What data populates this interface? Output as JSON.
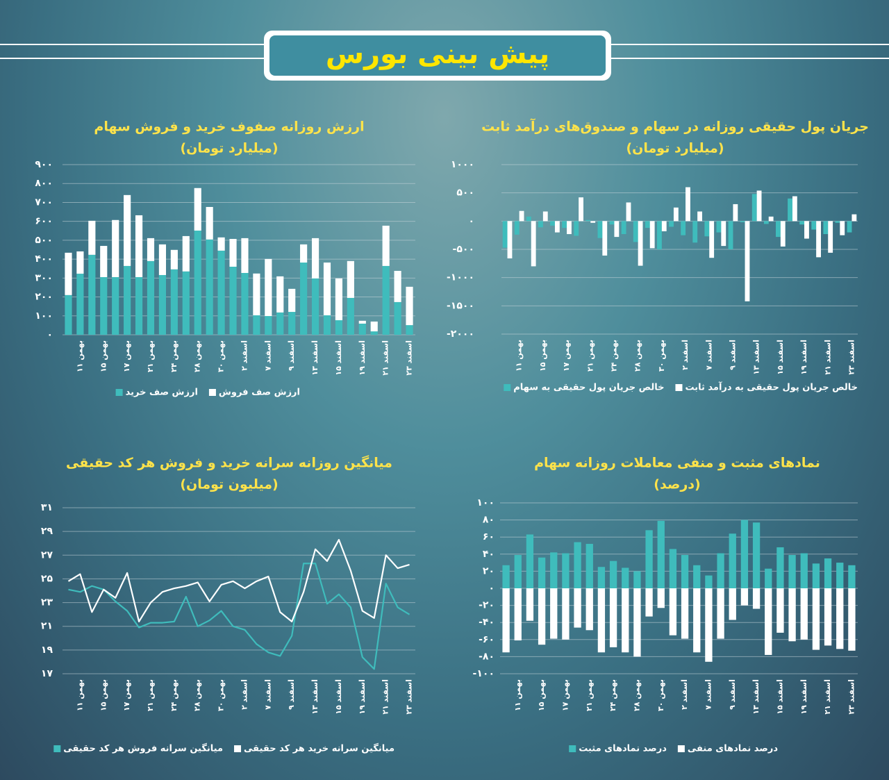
{
  "header": {
    "title": "پیش بینی بورس"
  },
  "chart_data": [
    {
      "type": "bar",
      "stacked": true,
      "title": "ارزش روزانه صفوف خرید و فروش سهام",
      "subtitle": "(میلیارد تومان)",
      "categories": [
        null,
        "۱۱ بهمن",
        null,
        "۱۵ بهمن",
        null,
        "۱۷ بهمن",
        null,
        "۲۱ بهمن",
        null,
        "۲۴ بهمن",
        null,
        "۲۸ بهمن",
        null,
        "۳۰ بهمن",
        null,
        "۲ اسفند",
        null,
        "۷ اسفند",
        null,
        "۹ اسفند",
        null,
        "۱۳ اسفند",
        null,
        "۱۵ اسفند",
        null,
        "۱۹ اسفند",
        null,
        "۲۱ اسفند",
        null,
        "۲۳ اسفند"
      ],
      "series": [
        {
          "name": "ارزش صف خرید",
          "color": "#3fbcbc",
          "values": [
            210,
            323,
            423,
            305,
            305,
            364,
            305,
            390,
            316,
            346,
            335,
            551,
            504,
            445,
            360,
            327,
            103,
            99,
            118,
            121,
            382,
            298,
            103,
            77,
            195,
            59,
            18,
            364,
            173,
            51
          ]
        },
        {
          "name": "ارزش صف فروش",
          "color": "#ffffff",
          "values": [
            224,
            118,
            180,
            165,
            302,
            375,
            327,
            121,
            162,
            103,
            187,
            225,
            172,
            70,
            147,
            184,
            221,
            302,
            191,
            122,
            96,
            213,
            279,
            221,
            195,
            15,
            52,
            213,
            165,
            203
          ]
        }
      ],
      "ylim": [
        0,
        900
      ],
      "yticks": [
        {
          "value": 0,
          "label": "۰"
        },
        {
          "value": 100,
          "label": "۱۰۰"
        },
        {
          "value": 200,
          "label": "۲۰۰"
        },
        {
          "value": 300,
          "label": "۳۰۰"
        },
        {
          "value": 400,
          "label": "۴۰۰"
        },
        {
          "value": 500,
          "label": "۵۰۰"
        },
        {
          "value": 600,
          "label": "۶۰۰"
        },
        {
          "value": 700,
          "label": "۷۰۰"
        },
        {
          "value": 800,
          "label": "۸۰۰"
        },
        {
          "value": 900,
          "label": "۹۰۰"
        }
      ],
      "grid": true
    },
    {
      "type": "bar",
      "stacked": false,
      "title": "جریان پول حقیقی روزانه در سهام و صندوق‌های درآمد ثابت",
      "subtitle": "(میلیارد تومان)",
      "categories": [
        null,
        "۱۱ بهمن",
        null,
        "۱۵ بهمن",
        null,
        "۱۷ بهمن",
        null,
        "۲۱ بهمن",
        null,
        "۲۴ بهمن",
        null,
        "۲۸ بهمن",
        null,
        "۳۰ بهمن",
        null,
        "۲ اسفند",
        null,
        "۷ اسفند",
        null,
        "۹ اسفند",
        null,
        "۱۳ اسفند",
        null,
        "۱۵ اسفند",
        null,
        "۱۹ اسفند",
        null,
        "۲۱ اسفند",
        null,
        "۲۳ اسفند"
      ],
      "series": [
        {
          "name": "خالص جریان پول حقیقی به سهام",
          "color": "#3fbcbc",
          "values": [
            -470,
            -240,
            80,
            -110,
            -80,
            -120,
            -260,
            20,
            -300,
            -60,
            -230,
            -370,
            -120,
            -500,
            -100,
            -250,
            -380,
            -270,
            -200,
            -500,
            -20,
            480,
            -50,
            -280,
            400,
            -60,
            -150,
            -230,
            -30,
            -200
          ]
        },
        {
          "name": "خالص جریان پول حقیقی به درآمد ثابت",
          "color": "#ffffff",
          "values": [
            -660,
            180,
            -800,
            170,
            -200,
            -230,
            420,
            -30,
            -610,
            -280,
            330,
            -790,
            -480,
            -180,
            240,
            600,
            170,
            -650,
            -440,
            300,
            -1420,
            540,
            80,
            -450,
            440,
            -310,
            -640,
            -560,
            -250,
            120
          ]
        }
      ],
      "ylim": [
        -2000,
        1000
      ],
      "yticks": [
        {
          "value": -2000,
          "label": "-۲۰۰۰"
        },
        {
          "value": -1500,
          "label": "-۱۵۰۰"
        },
        {
          "value": -1000,
          "label": "-۱۰۰۰"
        },
        {
          "value": -500,
          "label": "-۵۰۰"
        },
        {
          "value": 0,
          "label": "۰"
        },
        {
          "value": 500,
          "label": "۵۰۰"
        },
        {
          "value": 1000,
          "label": "۱۰۰۰"
        }
      ],
      "grid": true
    },
    {
      "type": "line",
      "title": "میانگین روزانه سرانه خرید و فروش هر کد حقیقی",
      "subtitle": "(میلیون تومان)",
      "categories": [
        null,
        "۱۱ بهمن",
        null,
        "۱۵ بهمن",
        null,
        "۱۷ بهمن",
        null,
        "۲۱ بهمن",
        null,
        "۲۴ بهمن",
        null,
        "۲۸ بهمن",
        null,
        "۳۰ بهمن",
        null,
        "۲ اسفند",
        null,
        "۷ اسفند",
        null,
        "۹ اسفند",
        null,
        "۱۳ اسفند",
        null,
        "۱۵ اسفند",
        null,
        "۱۹ اسفند",
        null,
        "۲۱ اسفند",
        null,
        "۲۳ اسفند"
      ],
      "series": [
        {
          "name": "میانگین سرانه فروش هر کد حقیقی",
          "color": "#3fbcbc",
          "values": [
            24.1,
            23.9,
            24.4,
            24.1,
            23.1,
            22.3,
            20.9,
            21.3,
            21.3,
            21.4,
            23.5,
            21.0,
            21.5,
            22.3,
            21.0,
            20.7,
            19.5,
            18.8,
            18.5,
            20.2,
            26.3,
            26.3,
            22.9,
            23.7,
            22.6,
            18.4,
            17.4,
            24.6,
            22.6,
            22.0
          ]
        },
        {
          "name": "میانگین سرانه خرید هر کد حقیقی",
          "color": "#ffffff",
          "values": [
            24.8,
            25.4,
            22.2,
            24.1,
            23.4,
            25.5,
            21.4,
            23.0,
            23.9,
            24.2,
            24.4,
            24.7,
            23.1,
            24.5,
            24.8,
            24.2,
            24.8,
            25.2,
            22.2,
            21.4,
            23.9,
            27.5,
            26.5,
            28.3,
            25.7,
            22.3,
            21.7,
            27.0,
            25.9,
            26.2
          ]
        }
      ],
      "ylim": [
        17,
        31
      ],
      "yticks": [
        {
          "value": 17,
          "label": "۱۷"
        },
        {
          "value": 19,
          "label": "۱۹"
        },
        {
          "value": 21,
          "label": "۲۱"
        },
        {
          "value": 23,
          "label": "۲۳"
        },
        {
          "value": 25,
          "label": "۲۵"
        },
        {
          "value": 27,
          "label": "۲۷"
        },
        {
          "value": 29,
          "label": "۲۹"
        },
        {
          "value": 31,
          "label": "۳۱"
        }
      ],
      "grid": true
    },
    {
      "type": "bar",
      "stacked": true,
      "title": "نمادهای مثبت و منفی معاملات روزانه سهام",
      "subtitle": "(درصد)",
      "categories": [
        null,
        "۱۱ بهمن",
        null,
        "۱۵ بهمن",
        null,
        "۱۷ بهمن",
        null,
        "۲۱ بهمن",
        null,
        "۲۴ بهمن",
        null,
        "۲۸ بهمن",
        null,
        "۳۰ بهمن",
        null,
        "۲ اسفند",
        null,
        "۷ اسفند",
        null,
        "۹ اسفند",
        null,
        "۱۳ اسفند",
        null,
        "۱۵ اسفند",
        null,
        "۱۹ اسفند",
        null,
        "۲۱ اسفند",
        null,
        "۲۳ اسفند"
      ],
      "series": [
        {
          "name": "درصد نمادهای مثبت",
          "color": "#3fbcbc",
          "values": [
            27,
            39,
            63,
            36,
            42,
            41,
            54,
            52,
            25,
            32,
            24,
            20,
            68,
            79,
            46,
            39,
            27,
            15,
            41,
            64,
            80,
            77,
            23,
            48,
            39,
            41,
            29,
            35,
            30,
            27
          ]
        },
        {
          "name": "درصد نمادهای منفی",
          "color": "#ffffff",
          "values": [
            -75,
            -61,
            -38,
            -66,
            -59,
            -60,
            -46,
            -49,
            -75,
            -69,
            -75,
            -80,
            -33,
            -23,
            -55,
            -59,
            -75,
            -86,
            -59,
            -37,
            -20,
            -24,
            -78,
            -52,
            -62,
            -60,
            -72,
            -67,
            -71,
            -73
          ]
        }
      ],
      "ylim": [
        -100,
        100
      ],
      "yticks": [
        {
          "value": -100,
          "label": "-۱۰۰"
        },
        {
          "value": -80,
          "label": "-۸۰"
        },
        {
          "value": -60,
          "label": "-۶۰"
        },
        {
          "value": -40,
          "label": "-۴۰"
        },
        {
          "value": -20,
          "label": "-۲۰"
        },
        {
          "value": 0,
          "label": "۰"
        },
        {
          "value": 20,
          "label": "۲۰"
        },
        {
          "value": 40,
          "label": "۴۰"
        },
        {
          "value": 60,
          "label": "۶۰"
        },
        {
          "value": 80,
          "label": "۸۰"
        },
        {
          "value": 100,
          "label": "۱۰۰"
        }
      ],
      "grid": true
    }
  ]
}
